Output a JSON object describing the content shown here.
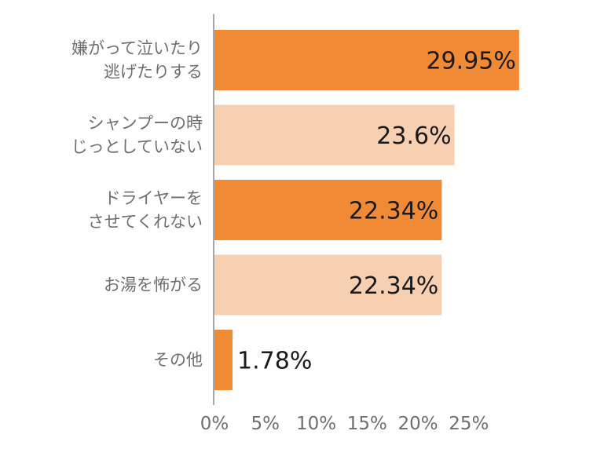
{
  "chart_data": {
    "type": "bar",
    "orientation": "horizontal",
    "categories": [
      [
        "嫌がって泣いたり",
        "逃げたりする"
      ],
      [
        "シャンプーの時",
        "じっとしていない"
      ],
      [
        "ドライヤーを",
        "させてくれない"
      ],
      [
        "お湯を怖がる"
      ],
      [
        "その他"
      ]
    ],
    "values": [
      29.95,
      23.6,
      22.34,
      22.34,
      1.78
    ],
    "value_labels": [
      "29.95%",
      "23.6%",
      "22.34%",
      "22.34%",
      "1.78%"
    ],
    "bar_colors": [
      "#f08a35",
      "#f7d0b2",
      "#f08a35",
      "#f7d0b2",
      "#f08a35"
    ],
    "x_ticks": [
      "0%",
      "5%",
      "10%",
      "15%",
      "20%",
      "25%"
    ],
    "xlim": [
      0,
      30
    ],
    "grid": false,
    "legend": "none"
  }
}
